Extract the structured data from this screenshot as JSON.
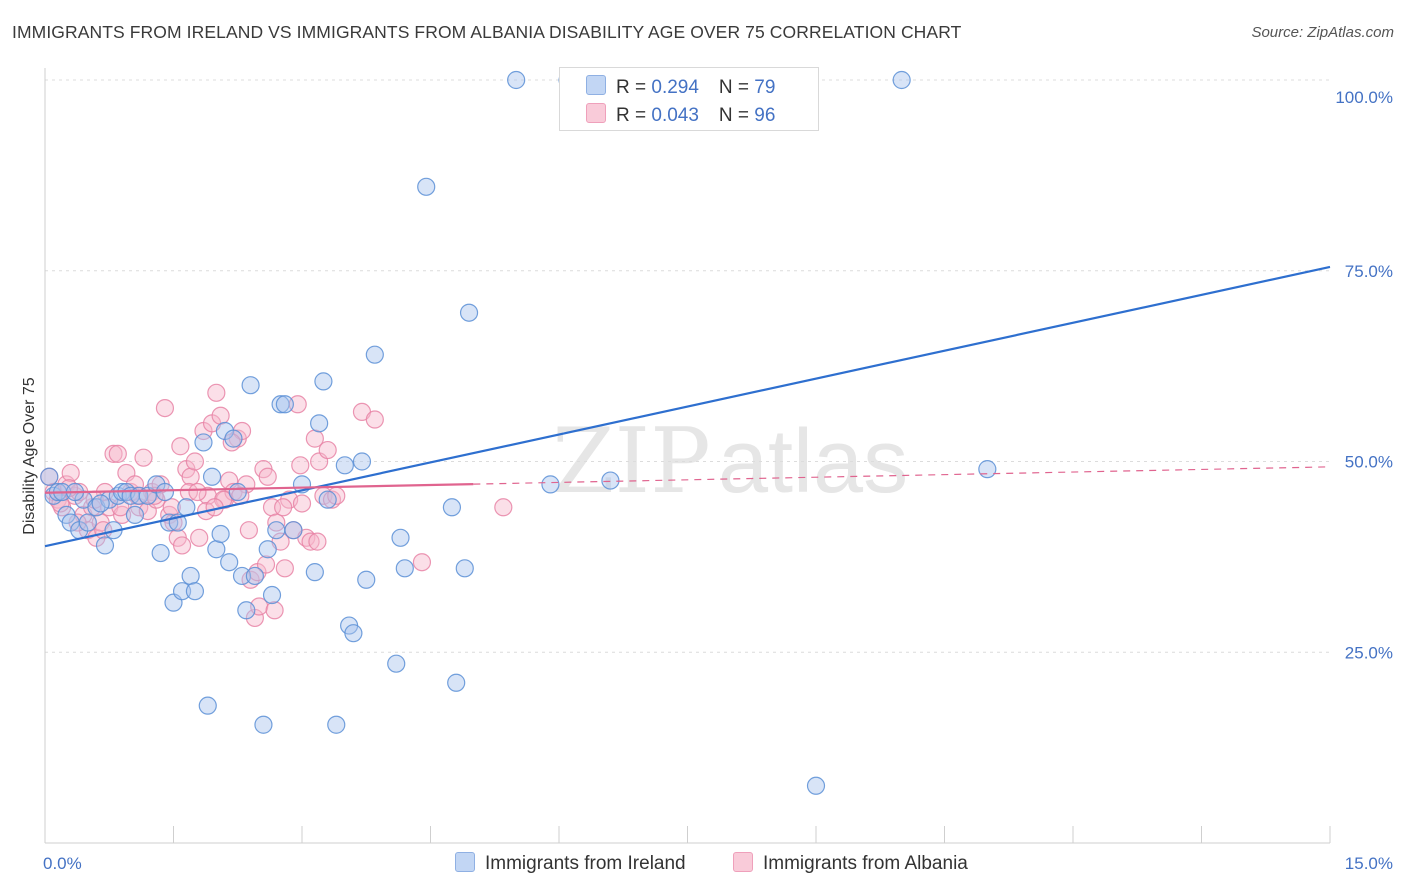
{
  "title": "IMMIGRANTS FROM IRELAND VS IMMIGRANTS FROM ALBANIA DISABILITY AGE OVER 75 CORRELATION CHART",
  "source": "Source: ZipAtlas.com",
  "watermark": {
    "zip": "ZIP",
    "atlas": "atlas"
  },
  "legend": {
    "ireland": {
      "r_label": "R = ",
      "r_value": "0.294",
      "n_label": "N = ",
      "n_value": "79"
    },
    "albania": {
      "r_label": "R = ",
      "r_value": "0.043",
      "n_label": "N = ",
      "n_value": "96"
    }
  },
  "colors": {
    "ireland_fill": "#a9c4ee",
    "ireland_stroke": "#5b8fd6",
    "ireland_line": "#2e6fcf",
    "albania_fill": "#f6b8cc",
    "albania_stroke": "#e884a6",
    "albania_line": "#e0648f"
  },
  "chart_data": {
    "type": "scatter",
    "title": "IMMIGRANTS FROM IRELAND VS IMMIGRANTS FROM ALBANIA DISABILITY AGE OVER 75 CORRELATION CHART",
    "xlabel": "",
    "ylabel": "Disability Age Over 75",
    "xlim": [
      0,
      15
    ],
    "ylim": [
      0,
      102
    ],
    "x_tick_labels": [
      "0.0%",
      "15.0%"
    ],
    "y_ticks": [
      25,
      50,
      75,
      100
    ],
    "y_tick_labels": [
      "25.0%",
      "50.0%",
      "75.0%",
      "100.0%"
    ],
    "grid": true,
    "series": [
      {
        "name": "Immigrants from Ireland",
        "points": [
          [
            0.05,
            48
          ],
          [
            0.1,
            45.5
          ],
          [
            0.15,
            46
          ],
          [
            0.2,
            46
          ],
          [
            0.25,
            43
          ],
          [
            0.3,
            42
          ],
          [
            0.4,
            41
          ],
          [
            0.45,
            45
          ],
          [
            0.5,
            42
          ],
          [
            0.6,
            44
          ],
          [
            0.7,
            39
          ],
          [
            0.75,
            45
          ],
          [
            0.8,
            41
          ],
          [
            0.85,
            45.5
          ],
          [
            0.9,
            46
          ],
          [
            0.95,
            46
          ],
          [
            1.0,
            45.5
          ],
          [
            1.05,
            43
          ],
          [
            1.1,
            45.5
          ],
          [
            1.2,
            45.5
          ],
          [
            1.3,
            47
          ],
          [
            1.35,
            38
          ],
          [
            1.45,
            42
          ],
          [
            1.5,
            31.5
          ],
          [
            1.55,
            42
          ],
          [
            1.6,
            33
          ],
          [
            1.65,
            44
          ],
          [
            1.7,
            35
          ],
          [
            1.75,
            33
          ],
          [
            1.85,
            52.5
          ],
          [
            1.9,
            18
          ],
          [
            1.95,
            48
          ],
          [
            2.0,
            38.5
          ],
          [
            2.05,
            40.5
          ],
          [
            2.1,
            54
          ],
          [
            2.15,
            36.8
          ],
          [
            2.2,
            53
          ],
          [
            2.25,
            46
          ],
          [
            2.3,
            35
          ],
          [
            2.35,
            30.5
          ],
          [
            2.4,
            60
          ],
          [
            2.45,
            35
          ],
          [
            2.55,
            15.5
          ],
          [
            2.6,
            38.5
          ],
          [
            2.65,
            32.5
          ],
          [
            2.7,
            41
          ],
          [
            2.75,
            57.5
          ],
          [
            2.8,
            57.5
          ],
          [
            2.9,
            41
          ],
          [
            3.0,
            47
          ],
          [
            3.15,
            35.5
          ],
          [
            3.2,
            55
          ],
          [
            3.25,
            60.5
          ],
          [
            3.3,
            45
          ],
          [
            3.5,
            49.5
          ],
          [
            3.55,
            28.5
          ],
          [
            3.6,
            27.5
          ],
          [
            3.7,
            50
          ],
          [
            3.75,
            34.5
          ],
          [
            3.85,
            64
          ],
          [
            4.1,
            23.5
          ],
          [
            4.15,
            40
          ],
          [
            4.2,
            36
          ],
          [
            4.45,
            86
          ],
          [
            4.75,
            44
          ],
          [
            4.8,
            21
          ],
          [
            4.9,
            36
          ],
          [
            4.95,
            69.5
          ],
          [
            5.5,
            100
          ],
          [
            5.9,
            47
          ],
          [
            6.1,
            100
          ],
          [
            6.6,
            47.5
          ],
          [
            10.0,
            100
          ],
          [
            11.0,
            49
          ],
          [
            0.35,
            46
          ],
          [
            1.4,
            46
          ],
          [
            0.65,
            44.5
          ],
          [
            3.4,
            15.5
          ],
          [
            9.0,
            7.5
          ]
        ]
      },
      {
        "name": "Immigrants from Albania",
        "points": [
          [
            0.05,
            48
          ],
          [
            0.1,
            46
          ],
          [
            0.15,
            45
          ],
          [
            0.2,
            44
          ],
          [
            0.25,
            47
          ],
          [
            0.3,
            48.5
          ],
          [
            0.35,
            45.5
          ],
          [
            0.4,
            46
          ],
          [
            0.45,
            43
          ],
          [
            0.5,
            41
          ],
          [
            0.55,
            44
          ],
          [
            0.6,
            40
          ],
          [
            0.65,
            42
          ],
          [
            0.7,
            46
          ],
          [
            0.75,
            44
          ],
          [
            0.8,
            51
          ],
          [
            0.85,
            51
          ],
          [
            0.9,
            43
          ],
          [
            0.95,
            48.5
          ],
          [
            1.0,
            46
          ],
          [
            1.05,
            47
          ],
          [
            1.1,
            44
          ],
          [
            1.15,
            50.5
          ],
          [
            1.2,
            43.5
          ],
          [
            1.25,
            46
          ],
          [
            1.3,
            45
          ],
          [
            1.35,
            47
          ],
          [
            1.4,
            57
          ],
          [
            1.45,
            43
          ],
          [
            1.5,
            42
          ],
          [
            1.55,
            40
          ],
          [
            1.6,
            39
          ],
          [
            1.65,
            49
          ],
          [
            1.7,
            48
          ],
          [
            1.75,
            50
          ],
          [
            1.8,
            40
          ],
          [
            1.85,
            54
          ],
          [
            1.9,
            45.5
          ],
          [
            1.95,
            55
          ],
          [
            2.0,
            59
          ],
          [
            2.05,
            56
          ],
          [
            2.1,
            45
          ],
          [
            2.15,
            47.5
          ],
          [
            2.2,
            46
          ],
          [
            2.25,
            53
          ],
          [
            2.3,
            54
          ],
          [
            2.35,
            47
          ],
          [
            2.4,
            34.5
          ],
          [
            2.45,
            29.5
          ],
          [
            2.5,
            31
          ],
          [
            2.55,
            49
          ],
          [
            2.6,
            48
          ],
          [
            2.65,
            44
          ],
          [
            2.7,
            42
          ],
          [
            2.75,
            39.5
          ],
          [
            2.8,
            36
          ],
          [
            2.85,
            45
          ],
          [
            2.9,
            41
          ],
          [
            2.95,
            57.5
          ],
          [
            3.0,
            44.5
          ],
          [
            3.05,
            40
          ],
          [
            3.1,
            39.5
          ],
          [
            3.15,
            53
          ],
          [
            3.2,
            50
          ],
          [
            3.25,
            45.5
          ],
          [
            3.3,
            51.5
          ],
          [
            3.35,
            45
          ],
          [
            3.4,
            45.5
          ],
          [
            3.7,
            56.5
          ],
          [
            3.85,
            55.5
          ],
          [
            4.4,
            36.8
          ],
          [
            5.35,
            44
          ],
          [
            0.18,
            44.5
          ],
          [
            0.28,
            46.5
          ],
          [
            0.38,
            42
          ],
          [
            0.58,
            45
          ],
          [
            0.68,
            41
          ],
          [
            0.88,
            44
          ],
          [
            1.08,
            45.5
          ],
          [
            1.28,
            45.5
          ],
          [
            1.48,
            44
          ],
          [
            1.68,
            46
          ],
          [
            1.88,
            43.5
          ],
          [
            2.08,
            45
          ],
          [
            2.28,
            45.5
          ],
          [
            2.48,
            35.5
          ],
          [
            2.68,
            30.5
          ],
          [
            1.58,
            52
          ],
          [
            1.78,
            46
          ],
          [
            1.98,
            44
          ],
          [
            2.18,
            52.5
          ],
          [
            2.38,
            41
          ],
          [
            2.58,
            36.5
          ],
          [
            2.78,
            44
          ],
          [
            2.98,
            49.5
          ],
          [
            3.18,
            39.5
          ]
        ]
      }
    ],
    "trend_lines": [
      {
        "series": "Immigrants from Ireland",
        "x": [
          0,
          15
        ],
        "y": [
          38.9,
          75.5
        ]
      },
      {
        "series": "Immigrants from Albania",
        "x": [
          0,
          15
        ],
        "y": [
          45.9,
          49.3
        ],
        "solid_until_x": 5.0
      }
    ],
    "legend_position": "top-center",
    "bottom_legend": [
      "Immigrants from Ireland",
      "Immigrants from Albania"
    ]
  }
}
